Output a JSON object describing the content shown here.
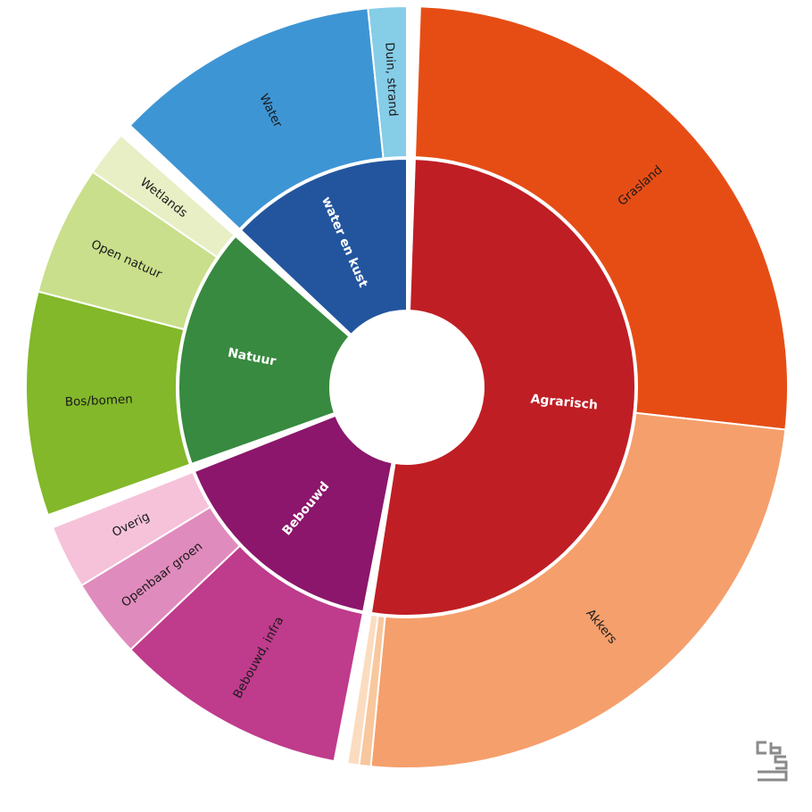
{
  "chart_data": {
    "type": "sunburst",
    "title": "",
    "inner": [
      {
        "label": "Agrarisch",
        "value": 52.5,
        "color": "#bf1e24"
      },
      {
        "label": "Bebouwd",
        "value": 16.5,
        "color": "#8b166b"
      },
      {
        "label": "Natuur",
        "value": 17.5,
        "color": "#378a3f"
      },
      {
        "label": "water en kust",
        "value": 13.5,
        "color": "#23559e"
      }
    ],
    "outer": [
      {
        "label": "Grasland",
        "parent": "Agrarisch",
        "value": 26.5,
        "color": "#e64d15"
      },
      {
        "label": "Akkers",
        "parent": "Agrarisch",
        "value": 25.0,
        "color": "#f59f6c"
      },
      {
        "label": "",
        "parent": "Agrarisch",
        "value": 0.5,
        "color": "#f8c79d"
      },
      {
        "label": "",
        "parent": "Agrarisch",
        "value": 0.5,
        "color": "#fbdcc0"
      },
      {
        "label": "Bebouwd, infra",
        "parent": "Bebouwd",
        "value": 10.2,
        "color": "#bf3b8c"
      },
      {
        "label": "Openbaar groen",
        "parent": "Bebouwd",
        "value": 3.5,
        "color": "#e08bbd"
      },
      {
        "label": "Overig",
        "parent": "Bebouwd",
        "value": 2.8,
        "color": "#f6c2da"
      },
      {
        "label": "Bos/bomen",
        "parent": "Natuur",
        "value": 9.8,
        "color": "#82b829"
      },
      {
        "label": "Open natuur",
        "parent": "Natuur",
        "value": 5.7,
        "color": "#c9df8b"
      },
      {
        "label": "Wetlands",
        "parent": "Natuur",
        "value": 2.0,
        "color": "#e8efc5"
      },
      {
        "label": "Water",
        "parent": "water en kust",
        "value": 11.8,
        "color": "#3e95d4"
      },
      {
        "label": "Duin, strand",
        "parent": "water en kust",
        "value": 1.7,
        "color": "#86cde8"
      }
    ],
    "start_angle_deg": 1,
    "direction": "clockwise"
  },
  "logo": {
    "icon": "cbs-logo-icon",
    "text": "cbs"
  }
}
